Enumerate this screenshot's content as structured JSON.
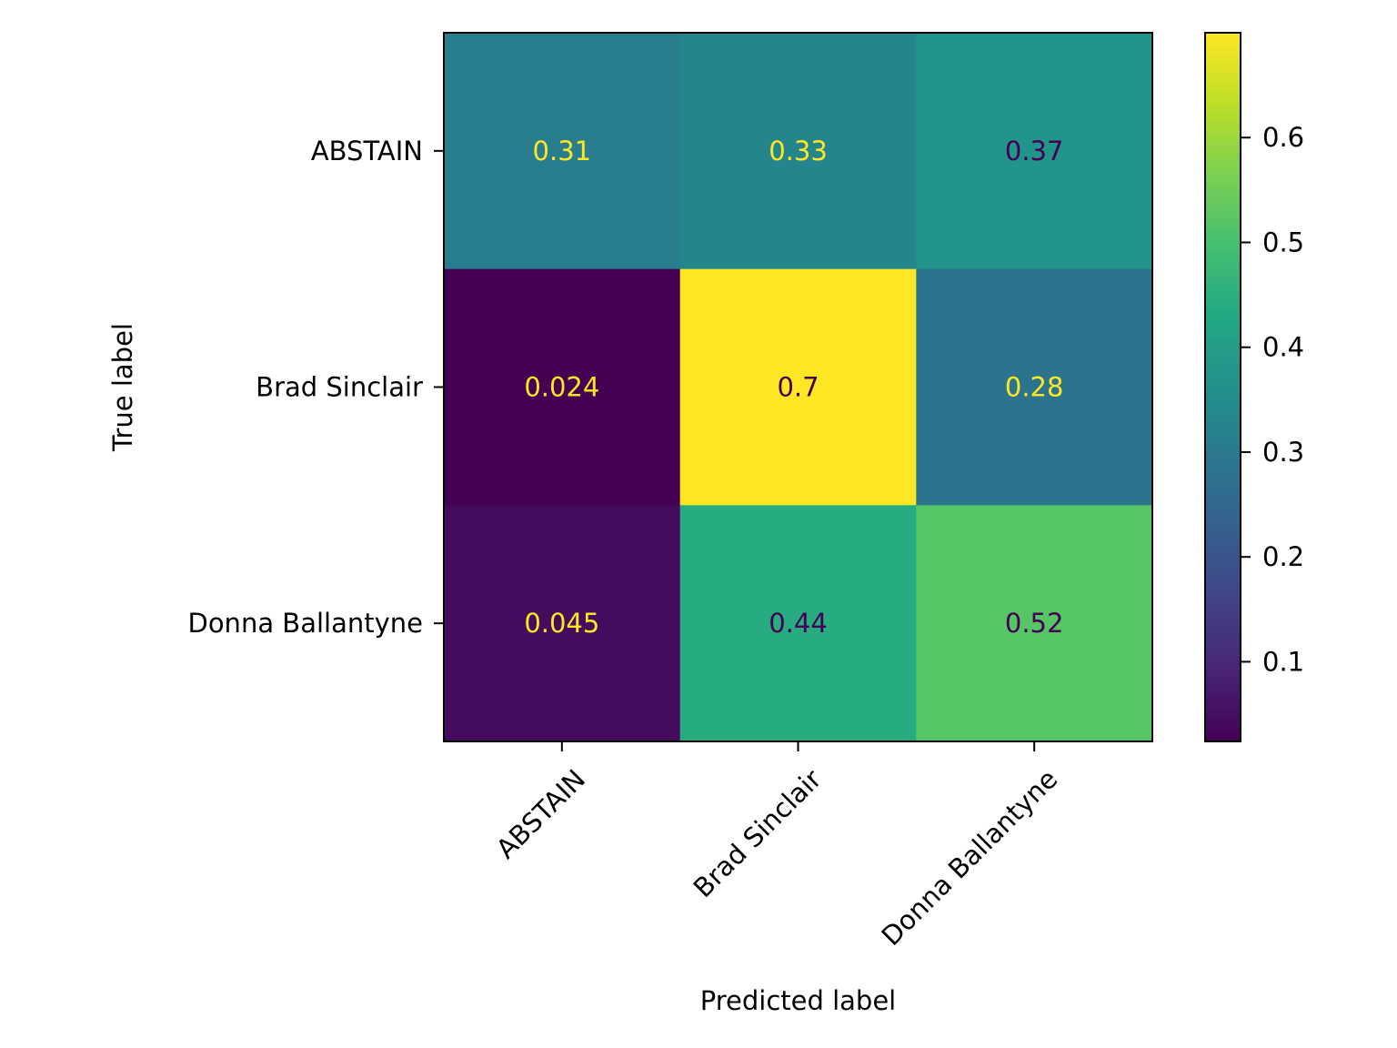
{
  "chart_data": {
    "type": "heatmap",
    "title": "",
    "xlabel": "Predicted label",
    "ylabel": "True label",
    "x_categories": [
      "ABSTAIN",
      "Brad Sinclair",
      "Donna Ballantyne"
    ],
    "y_categories": [
      "ABSTAIN",
      "Brad Sinclair",
      "Donna Ballantyne"
    ],
    "values": [
      [
        0.31,
        0.33,
        0.37
      ],
      [
        0.024,
        0.7,
        0.28
      ],
      [
        0.045,
        0.44,
        0.52
      ]
    ],
    "cell_labels": [
      [
        "0.31",
        "0.33",
        "0.37"
      ],
      [
        "0.024",
        "0.7",
        "0.28"
      ],
      [
        "0.045",
        "0.44",
        "0.52"
      ]
    ],
    "colormap": "viridis",
    "color_range": [
      0.024,
      0.7
    ],
    "colorbar_ticks": [
      0.1,
      0.2,
      0.3,
      0.4,
      0.5,
      0.6
    ],
    "colorbar_tick_labels": [
      "0.1",
      "0.2",
      "0.3",
      "0.4",
      "0.5",
      "0.6"
    ],
    "x_tick_rotation_deg": 45,
    "label_color_light": "#fde725",
    "label_color_dark": "#440154",
    "grid": false
  }
}
